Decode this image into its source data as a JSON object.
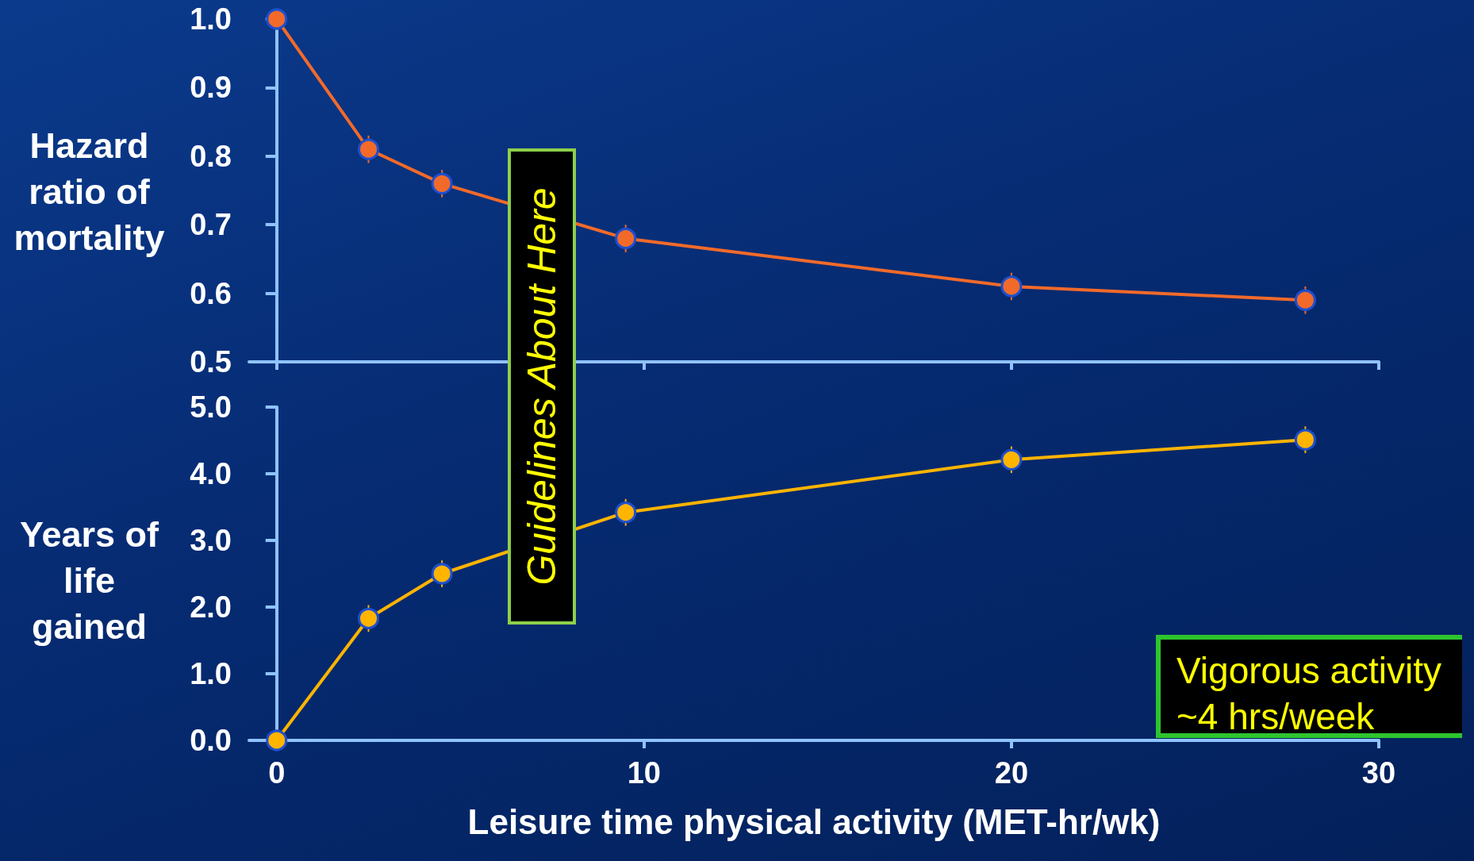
{
  "chart_data": [
    {
      "type": "line",
      "ylabel": "Hazard ratio of mortality",
      "x": [
        0,
        2.5,
        4.5,
        9.5,
        20,
        28
      ],
      "series": [
        {
          "color": "#f26a2a",
          "values": [
            1.0,
            0.81,
            0.76,
            0.68,
            0.61,
            0.59
          ],
          "errors": [
            null,
            0.02,
            0.02,
            0.02,
            0.02,
            0.02
          ]
        }
      ],
      "xlim": [
        -0.75,
        30
      ],
      "xticks": [
        0,
        10,
        20,
        30
      ],
      "ylim": [
        0.5,
        1.0
      ],
      "yticks": [
        0.5,
        0.6,
        0.7,
        0.8,
        0.9,
        {
          "value": 1,
          "label": "1.0"
        }
      ],
      "tick_labels": "y",
      "grid": false,
      "marker": "circle",
      "line_style": "solid",
      "annotations": [
        "Guidelines About Here"
      ]
    },
    {
      "type": "line",
      "ylabel": "Years of life gained",
      "xlabel": "Leisure time physical activity (MET-hr/wk)",
      "x": [
        0,
        2.5,
        4.5,
        9.5,
        20,
        28
      ],
      "series": [
        {
          "color": "#ffb400",
          "values": [
            0.0,
            1.83,
            2.5,
            3.42,
            4.21,
            4.51
          ],
          "errors": [
            null,
            0.2,
            0.2,
            0.2,
            0.2,
            0.2
          ]
        }
      ],
      "xlim": [
        -0.75,
        30
      ],
      "xticks": [
        0,
        10,
        20,
        30
      ],
      "ylim": [
        0.0,
        5.0
      ],
      "yticks": [
        {
          "value": 0,
          "label": "0.0"
        },
        {
          "value": 1,
          "label": "1.0"
        },
        {
          "value": 2,
          "label": "2.0"
        },
        {
          "value": 3,
          "label": "3.0"
        },
        {
          "value": 4,
          "label": "4.0"
        },
        {
          "value": 5,
          "label": "5.0"
        }
      ],
      "grid": false,
      "marker": "circle",
      "line_style": "solid",
      "annotations": [
        "Vigorous activity ~4 hrs/week"
      ]
    }
  ]
}
